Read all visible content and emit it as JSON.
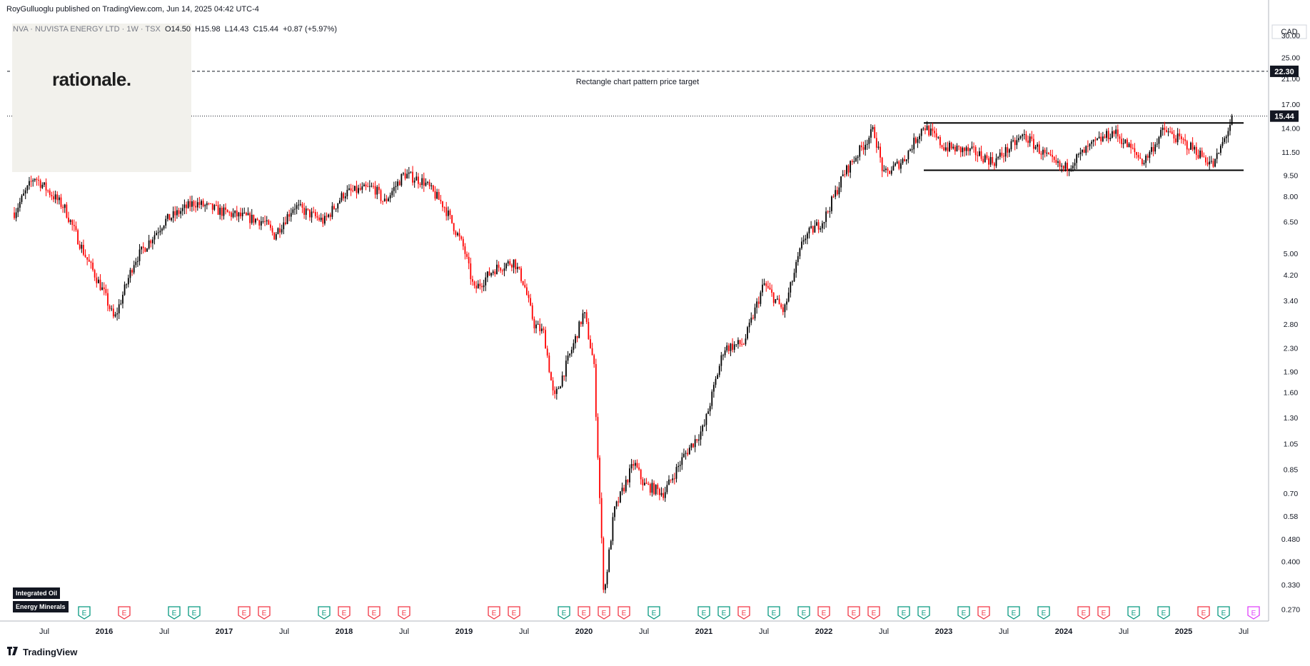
{
  "header": {
    "published": "RoyGulluoglu published on TradingView.com, Jun 14, 2025 04:42 UTC-4",
    "symbol": "NVA · NUVISTA ENERGY LTD · 1W · TSX",
    "open": "O14.50",
    "high": "H15.98",
    "low": "L14.43",
    "close": "C15.44",
    "change": "+0.87 (+5.97%)"
  },
  "logo": {
    "text": "rationale."
  },
  "tags": [
    "Integrated Oil",
    "Energy Minerals"
  ],
  "footer": {
    "brand": "TradingView",
    "icon": "tradingview-logo-icon"
  },
  "colors": {
    "up": "#000000",
    "down": "#ff0000",
    "earnings_past": "#089981",
    "earnings_past_red": "#f23645",
    "earnings_future": "#e040fb"
  },
  "chart_data": {
    "type": "candlestick",
    "currency": "CAD",
    "scale": "log",
    "title": "NVA · NUVISTA ENERGY LTD · 1W · TSX",
    "y_ticks": [
      30.0,
      25.0,
      21.0,
      17.0,
      14.0,
      11.5,
      9.5,
      8.0,
      6.5,
      5.0,
      4.2,
      3.4,
      2.8,
      2.3,
      1.9,
      1.6,
      1.3,
      1.05,
      0.85,
      0.7,
      0.58,
      0.48,
      0.4,
      0.33,
      0.27
    ],
    "y_tick_labels": [
      "30.00",
      "25.00",
      "21.00",
      "17.00",
      "14.00",
      "11.50",
      "9.50",
      "8.00",
      "6.50",
      "5.00",
      "4.20",
      "3.40",
      "2.80",
      "2.30",
      "1.90",
      "1.60",
      "1.30",
      "1.05",
      "0.85",
      "0.70",
      "0.58",
      "0.480",
      "0.400",
      "0.330",
      "0.270"
    ],
    "x_ticks": [
      {
        "date": "2015-07",
        "label": "Jul",
        "bold": false
      },
      {
        "date": "2016-01",
        "label": "2016",
        "bold": true
      },
      {
        "date": "2016-07",
        "label": "Jul",
        "bold": false
      },
      {
        "date": "2017-01",
        "label": "2017",
        "bold": true
      },
      {
        "date": "2017-07",
        "label": "Jul",
        "bold": false
      },
      {
        "date": "2018-01",
        "label": "2018",
        "bold": true
      },
      {
        "date": "2018-07",
        "label": "Jul",
        "bold": false
      },
      {
        "date": "2019-01",
        "label": "2019",
        "bold": true
      },
      {
        "date": "2019-07",
        "label": "Jul",
        "bold": false
      },
      {
        "date": "2020-01",
        "label": "2020",
        "bold": true
      },
      {
        "date": "2020-07",
        "label": "Jul",
        "bold": false
      },
      {
        "date": "2021-01",
        "label": "2021",
        "bold": true
      },
      {
        "date": "2021-07",
        "label": "Jul",
        "bold": false
      },
      {
        "date": "2022-01",
        "label": "2022",
        "bold": true
      },
      {
        "date": "2022-07",
        "label": "Jul",
        "bold": false
      },
      {
        "date": "2023-01",
        "label": "2023",
        "bold": true
      },
      {
        "date": "2023-07",
        "label": "Jul",
        "bold": false
      },
      {
        "date": "2024-01",
        "label": "2024",
        "bold": true
      },
      {
        "date": "2024-07",
        "label": "Jul",
        "bold": false
      },
      {
        "date": "2025-01",
        "label": "2025",
        "bold": true
      },
      {
        "date": "2025-07",
        "label": "Jul",
        "bold": false
      }
    ],
    "price_path": [
      [
        "2015-04",
        7.0
      ],
      [
        "2015-06",
        9.4
      ],
      [
        "2015-09",
        7.3
      ],
      [
        "2015-11",
        5.0
      ],
      [
        "2016-01",
        3.6
      ],
      [
        "2016-02",
        2.9
      ],
      [
        "2016-04",
        4.7
      ],
      [
        "2016-07",
        6.5
      ],
      [
        "2016-10",
        7.6
      ],
      [
        "2017-01",
        7.0
      ],
      [
        "2017-05",
        6.5
      ],
      [
        "2017-06",
        5.8
      ],
      [
        "2017-08",
        7.4
      ],
      [
        "2017-11",
        6.5
      ],
      [
        "2018-01",
        8.2
      ],
      [
        "2018-04",
        8.6
      ],
      [
        "2018-05",
        7.6
      ],
      [
        "2018-07",
        9.6
      ],
      [
        "2018-09",
        9.0
      ],
      [
        "2018-11",
        7.4
      ],
      [
        "2019-01",
        5.2
      ],
      [
        "2019-02",
        3.7
      ],
      [
        "2019-04",
        4.4
      ],
      [
        "2019-06",
        4.7
      ],
      [
        "2019-07",
        3.9
      ],
      [
        "2019-08",
        2.8
      ],
      [
        "2019-09",
        2.6
      ],
      [
        "2019-10",
        1.5
      ],
      [
        "2019-12",
        2.4
      ],
      [
        "2020-01",
        3.1
      ],
      [
        "2020-02",
        2.0
      ],
      [
        "2020-03",
        0.3
      ],
      [
        "2020-04",
        0.6
      ],
      [
        "2020-06",
        0.9
      ],
      [
        "2020-07",
        0.75
      ],
      [
        "2020-09",
        0.7
      ],
      [
        "2020-11",
        0.95
      ],
      [
        "2021-01",
        1.2
      ],
      [
        "2021-03",
        2.3
      ],
      [
        "2021-05",
        2.4
      ],
      [
        "2021-07",
        3.9
      ],
      [
        "2021-09",
        3.1
      ],
      [
        "2021-11",
        5.7
      ],
      [
        "2022-01",
        6.6
      ],
      [
        "2022-03",
        9.6
      ],
      [
        "2022-06",
        13.8
      ],
      [
        "2022-07",
        9.5
      ],
      [
        "2022-09",
        10.8
      ],
      [
        "2022-11",
        14.3
      ],
      [
        "2023-01",
        12.0
      ],
      [
        "2023-04",
        11.5
      ],
      [
        "2023-06",
        10.6
      ],
      [
        "2023-09",
        13.2
      ],
      [
        "2023-12",
        10.5
      ],
      [
        "2024-01",
        10.0
      ],
      [
        "2024-04",
        12.3
      ],
      [
        "2024-06",
        13.6
      ],
      [
        "2024-09",
        10.6
      ],
      [
        "2024-11",
        13.8
      ],
      [
        "2025-02",
        11.8
      ],
      [
        "2025-04",
        10.3
      ],
      [
        "2025-06",
        15.44
      ]
    ],
    "last_price": 15.44,
    "last_price_label": "15.44",
    "target_price": 22.3,
    "target_price_label": "22.30",
    "rectangle": {
      "top": 14.6,
      "bottom": 9.9,
      "from": "2022-11",
      "to": "2025-07"
    },
    "annotation": "Rectangle chart pattern price target",
    "earnings_markers": [
      {
        "date": "2015-11",
        "color": "green"
      },
      {
        "date": "2016-03",
        "color": "red"
      },
      {
        "date": "2016-08",
        "color": "green"
      },
      {
        "date": "2016-10",
        "color": "green"
      },
      {
        "date": "2017-03",
        "color": "red"
      },
      {
        "date": "2017-05",
        "color": "red"
      },
      {
        "date": "2017-11",
        "color": "green"
      },
      {
        "date": "2018-01",
        "color": "red"
      },
      {
        "date": "2018-04",
        "color": "red"
      },
      {
        "date": "2018-07",
        "color": "red"
      },
      {
        "date": "2019-04",
        "color": "red"
      },
      {
        "date": "2019-06",
        "color": "red"
      },
      {
        "date": "2019-11",
        "color": "green"
      },
      {
        "date": "2020-01",
        "color": "red"
      },
      {
        "date": "2020-03",
        "color": "red"
      },
      {
        "date": "2020-05",
        "color": "red"
      },
      {
        "date": "2020-08",
        "color": "green"
      },
      {
        "date": "2021-01",
        "color": "green"
      },
      {
        "date": "2021-03",
        "color": "green"
      },
      {
        "date": "2021-05",
        "color": "red"
      },
      {
        "date": "2021-08",
        "color": "green"
      },
      {
        "date": "2021-11",
        "color": "green"
      },
      {
        "date": "2022-01",
        "color": "red"
      },
      {
        "date": "2022-04",
        "color": "red"
      },
      {
        "date": "2022-06",
        "color": "red"
      },
      {
        "date": "2022-09",
        "color": "green"
      },
      {
        "date": "2022-11",
        "color": "green"
      },
      {
        "date": "2023-03",
        "color": "green"
      },
      {
        "date": "2023-05",
        "color": "red"
      },
      {
        "date": "2023-08",
        "color": "green"
      },
      {
        "date": "2023-11",
        "color": "green"
      },
      {
        "date": "2024-03",
        "color": "red"
      },
      {
        "date": "2024-05",
        "color": "red"
      },
      {
        "date": "2024-08",
        "color": "green"
      },
      {
        "date": "2024-11",
        "color": "green"
      },
      {
        "date": "2025-03",
        "color": "red"
      },
      {
        "date": "2025-05",
        "color": "green"
      },
      {
        "date": "2025-08",
        "color": "future"
      }
    ],
    "earnings_label": "E",
    "grid": false,
    "legend": "none"
  }
}
